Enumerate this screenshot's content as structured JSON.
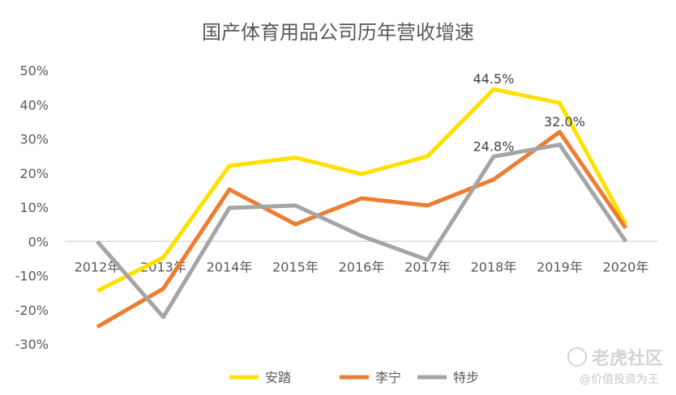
{
  "chart_data": {
    "type": "line",
    "title": "国产体育用品公司历年营收增速",
    "xlabel": "",
    "ylabel": "",
    "categories": [
      "2012年",
      "2013年",
      "2014年",
      "2015年",
      "2016年",
      "2017年",
      "2018年",
      "2019年",
      "2020年"
    ],
    "ylim": [
      -0.3,
      0.5
    ],
    "yticks": [
      "50%",
      "40%",
      "30%",
      "20%",
      "10%",
      "0%",
      "-10%",
      "-20%",
      "-30%"
    ],
    "ytick_values": [
      0.5,
      0.4,
      0.3,
      0.2,
      0.1,
      0,
      -0.1,
      -0.2,
      -0.3
    ],
    "grid": false,
    "legend_position": "bottom",
    "series": [
      {
        "name": "安踏",
        "color": "#FFE000",
        "values": [
          -0.145,
          -0.047,
          0.221,
          0.245,
          0.197,
          0.249,
          0.445,
          0.405,
          0.05
        ]
      },
      {
        "name": "李宁",
        "color": "#ED7D31",
        "values": [
          -0.25,
          -0.138,
          0.152,
          0.05,
          0.126,
          0.105,
          0.181,
          0.32,
          0.039
        ]
      },
      {
        "name": "特步",
        "color": "#A5A5A5",
        "values": [
          0.0,
          -0.221,
          0.098,
          0.105,
          0.016,
          -0.054,
          0.248,
          0.283,
          0.0
        ]
      }
    ],
    "annotations": [
      {
        "series": 0,
        "index": 6,
        "text": "44.5%"
      },
      {
        "series": 1,
        "index": 7,
        "text": "32.0%"
      },
      {
        "series": 2,
        "index": 6,
        "text": "24.8%"
      }
    ]
  },
  "watermark": {
    "logo": "老虎社区",
    "author": "@价值投资为王"
  }
}
